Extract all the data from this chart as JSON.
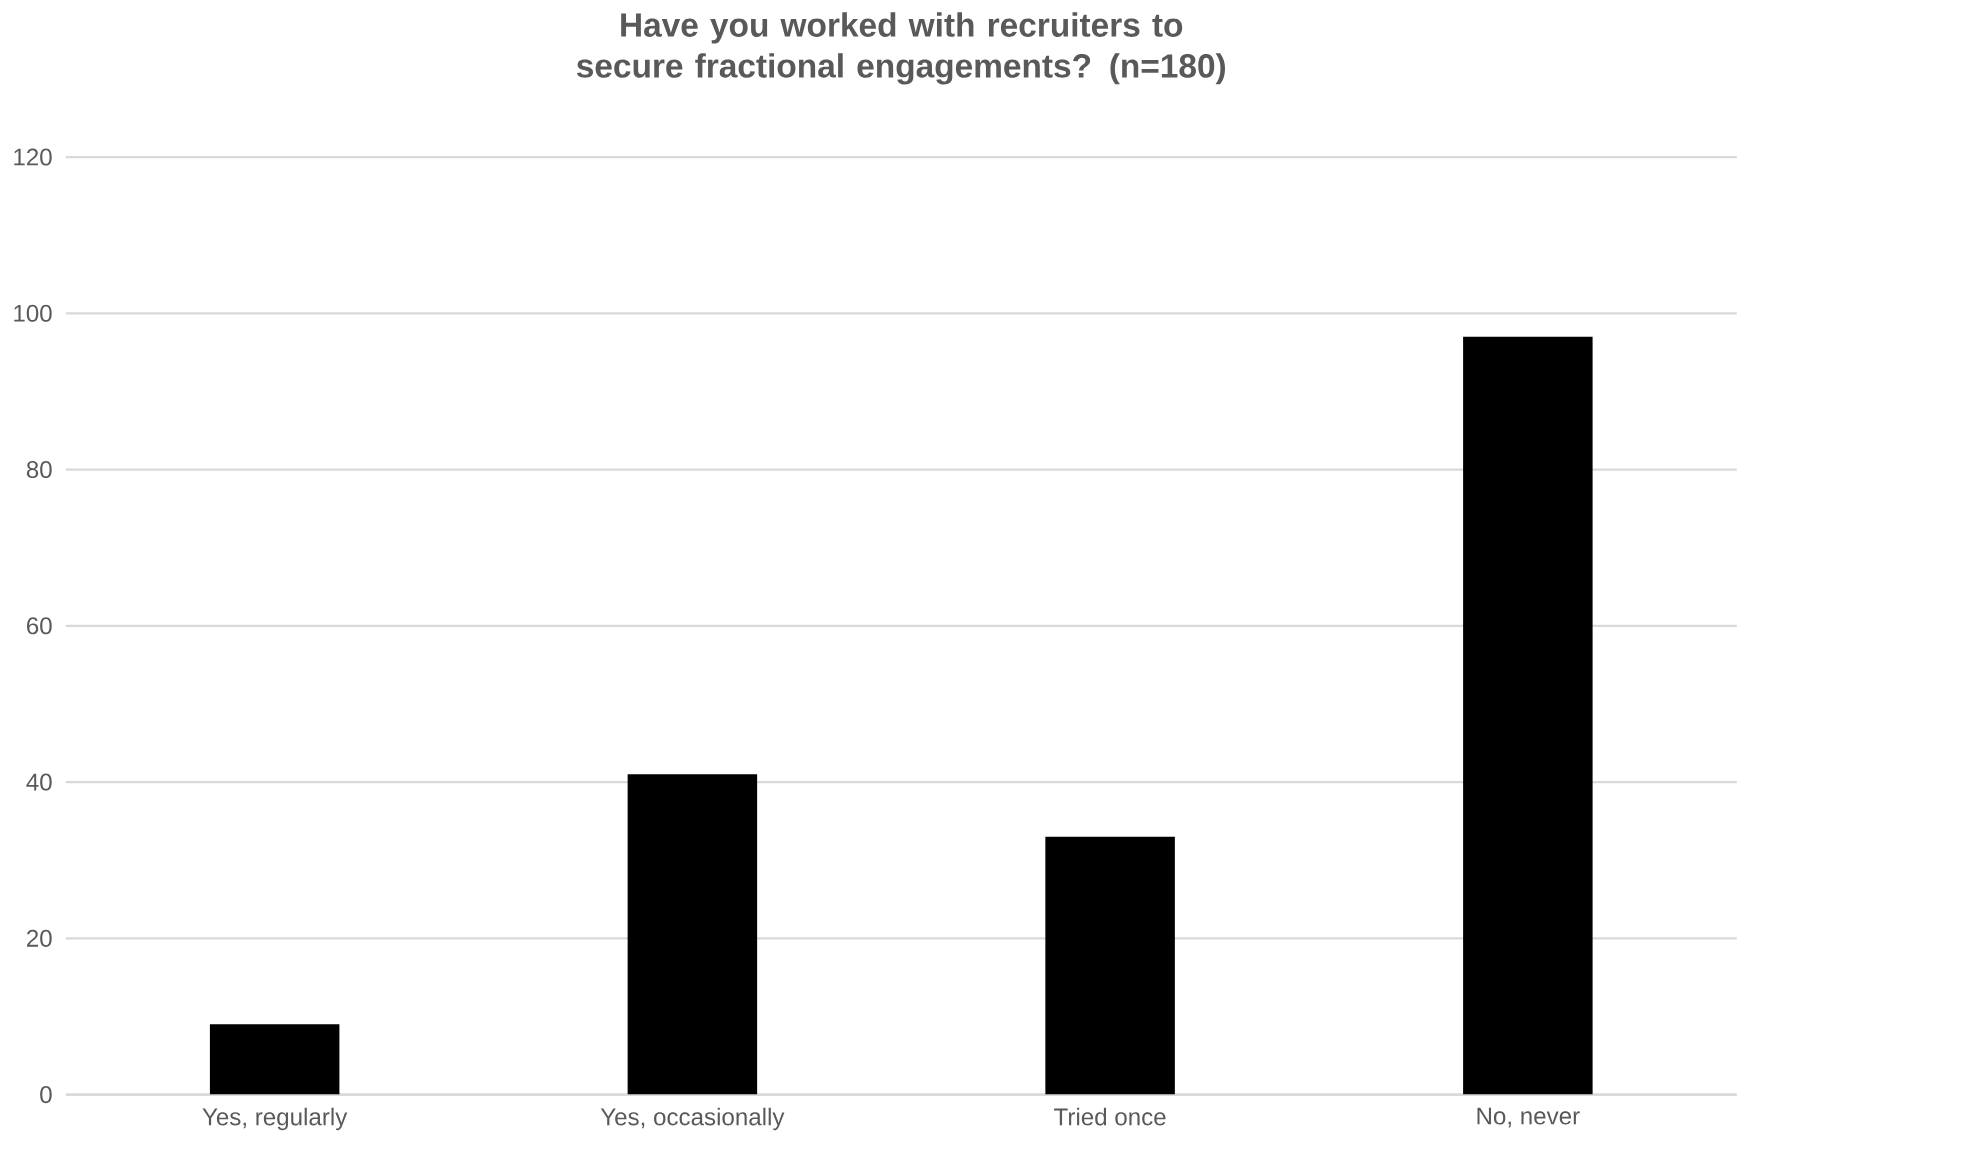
{
  "chart_data": {
    "type": "bar",
    "title": "Have you worked with recruiters to secure fractional engagements? (n=180)",
    "categories": [
      "Yes, regularly",
      "Yes, occasionally",
      "Tried once",
      "No, never"
    ],
    "values": [
      9,
      41,
      33,
      97
    ],
    "color": "#000000",
    "ylim": [
      0,
      120
    ],
    "yticks": [
      0,
      20,
      40,
      60,
      80,
      100,
      120
    ],
    "grid": "y"
  }
}
